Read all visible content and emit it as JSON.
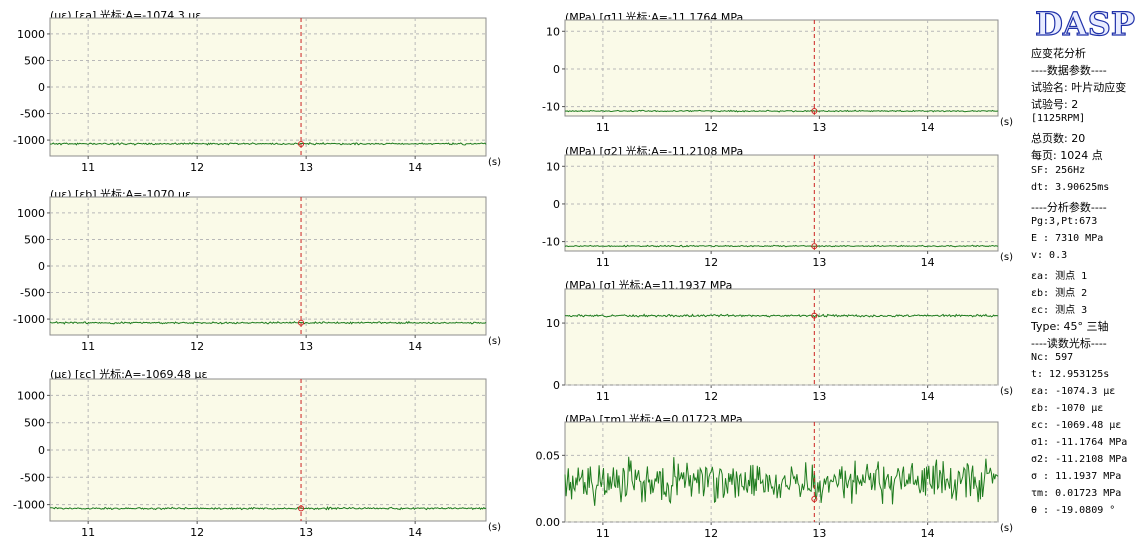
{
  "sidebar": {
    "logo": "DASP",
    "lines": [
      "应变花分析",
      "----数据参数----",
      "试验名: 叶片动应变",
      "试验号: 2",
      "[1125RPM]",
      "总页数: 20",
      "每页: 1024 点",
      "SF: 256Hz",
      "dt: 3.90625ms",
      "----分析参数----",
      "Pg:3,Pt:673",
      "E : 7310 MPa",
      "v: 0.3",
      "εa: 测点 1",
      "εb: 测点 2",
      "εc: 测点 3",
      "Type: 45° 三轴",
      "----读数光标----",
      "Nc: 597",
      "t: 12.953125s",
      "εa: -1074.3 με",
      "εb: -1070 με",
      "εc: -1069.48 με",
      "σ1: -11.1764 MPa",
      "σ2: -11.2108 MPa",
      "σ : 11.1937 MPa",
      "τm: 0.01723 MPa",
      "θ : -19.0809 °"
    ]
  },
  "colors": {
    "plot_bg": "#fafae8",
    "signal": "#1e7b1e",
    "cursor": "#cc2222",
    "grid": "#b8b8b8",
    "logo_fill": "#e8ecff",
    "logo_stroke": "#2233aa"
  },
  "chart_data": [
    {
      "type": "line",
      "title": "(με) [εa] 光标:A=-1074.3 με",
      "xlabel": "(s)",
      "xlim": [
        10.65,
        14.65
      ],
      "xticks": [
        11,
        12,
        13,
        14
      ],
      "xtick_labels": [
        "11",
        "12",
        "13",
        "14"
      ],
      "ylim": [
        -1300,
        1300
      ],
      "yticks": [
        1000,
        500,
        0,
        -500,
        -1000
      ],
      "ytick_labels": [
        "1000",
        "500",
        "0",
        "-500",
        "-1000"
      ],
      "grid": true,
      "cursor_x": 12.953125,
      "cursor_y": -1074.3,
      "series": [
        {
          "level": -1070,
          "noise": 12,
          "seed": 11
        }
      ]
    },
    {
      "type": "line",
      "title": "(με) [εb] 光标:A=-1070 με",
      "xlabel": "(s)",
      "xlim": [
        10.65,
        14.65
      ],
      "xticks": [
        11,
        12,
        13,
        14
      ],
      "xtick_labels": [
        "11",
        "12",
        "13",
        "14"
      ],
      "ylim": [
        -1300,
        1300
      ],
      "yticks": [
        1000,
        500,
        0,
        -500,
        -1000
      ],
      "ytick_labels": [
        "1000",
        "500",
        "0",
        "-500",
        "-1000"
      ],
      "grid": true,
      "cursor_x": 12.953125,
      "cursor_y": -1070,
      "series": [
        {
          "level": -1070,
          "noise": 12,
          "seed": 23
        }
      ]
    },
    {
      "type": "line",
      "title": "(με) [εc] 光标:A=-1069.48 με",
      "xlabel": "(s)",
      "xlim": [
        10.65,
        14.65
      ],
      "xticks": [
        11,
        12,
        13,
        14
      ],
      "xtick_labels": [
        "11",
        "12",
        "13",
        "14"
      ],
      "ylim": [
        -1300,
        1300
      ],
      "yticks": [
        1000,
        500,
        0,
        -500,
        -1000
      ],
      "ytick_labels": [
        "1000",
        "500",
        "0",
        "-500",
        "-1000"
      ],
      "grid": true,
      "cursor_x": 12.953125,
      "cursor_y": -1069.48,
      "series": [
        {
          "level": -1070,
          "noise": 12,
          "seed": 37
        }
      ]
    },
    {
      "type": "line",
      "title": "(MPa) [σ1] 光标:A=-11.1764 MPa",
      "xlabel": "(s)",
      "xlim": [
        10.65,
        14.65
      ],
      "xticks": [
        11,
        12,
        13,
        14
      ],
      "xtick_labels": [
        "11",
        "12",
        "13",
        "14"
      ],
      "ylim": [
        -12.5,
        13
      ],
      "yticks": [
        10,
        0,
        -10
      ],
      "ytick_labels": [
        "10",
        "0",
        "-10"
      ],
      "grid": true,
      "cursor_x": 12.953125,
      "cursor_y": -11.1764,
      "series": [
        {
          "level": -11.19,
          "noise": 0.12,
          "seed": 41
        }
      ]
    },
    {
      "type": "line",
      "title": "(MPa) [σ2] 光标:A=-11.2108 MPa",
      "xlabel": "(s)",
      "xlim": [
        10.65,
        14.65
      ],
      "xticks": [
        11,
        12,
        13,
        14
      ],
      "xtick_labels": [
        "11",
        "12",
        "13",
        "14"
      ],
      "ylim": [
        -12.5,
        13
      ],
      "yticks": [
        10,
        0,
        -10
      ],
      "ytick_labels": [
        "10",
        "0",
        "-10"
      ],
      "grid": true,
      "cursor_x": 12.953125,
      "cursor_y": -11.2108,
      "series": [
        {
          "level": -11.19,
          "noise": 0.12,
          "seed": 53
        }
      ]
    },
    {
      "type": "line",
      "title": "(MPa) [σ] 光标:A=11.1937 MPa",
      "xlabel": "(s)",
      "xlim": [
        10.65,
        14.65
      ],
      "xticks": [
        11,
        12,
        13,
        14
      ],
      "xtick_labels": [
        "11",
        "12",
        "13",
        "14"
      ],
      "ylim": [
        0,
        15.5
      ],
      "yticks": [
        10,
        0
      ],
      "ytick_labels": [
        "10",
        "0"
      ],
      "grid": true,
      "cursor_x": 12.953125,
      "cursor_y": 11.1937,
      "series": [
        {
          "level": 11.19,
          "noise": 0.12,
          "seed": 67
        }
      ]
    },
    {
      "type": "line",
      "title": "(MPa) [τm] 光标:A=0.01723 MPa",
      "xlabel": "(s)",
      "xlim": [
        10.65,
        14.65
      ],
      "xticks": [
        11,
        12,
        13,
        14
      ],
      "xtick_labels": [
        "11",
        "12",
        "13",
        "14"
      ],
      "ylim": [
        0,
        0.075
      ],
      "yticks": [
        0.05,
        0
      ],
      "ytick_labels": [
        "0.05",
        "0.00"
      ],
      "grid": true,
      "cursor_x": 12.953125,
      "cursor_y": 0.01723,
      "series": [
        {
          "level": 0.03,
          "noise": 0.011,
          "seed": 79,
          "clip_min": 0.012,
          "clip_max": 0.068
        }
      ]
    }
  ]
}
